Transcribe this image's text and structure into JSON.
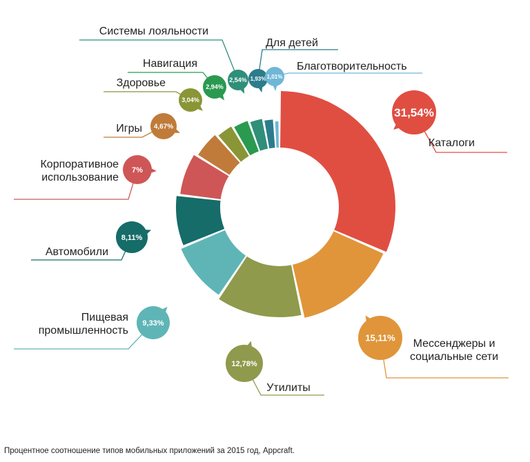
{
  "caption": "Процентное соотношение типов мобильных приложений за 2015 год, Appcraft.",
  "chart_data": {
    "type": "pie",
    "donut": true,
    "slices": [
      {
        "label": "Каталоги",
        "value": 31.54,
        "value_label": "31,54%",
        "color": "#e04e42",
        "label_lines": [
          "Каталоги"
        ]
      },
      {
        "label": "Мессенджеры и социальные сети",
        "value": 15.11,
        "value_label": "15,11%",
        "color": "#e0953a",
        "label_lines": [
          "Мессенджеры и",
          "социальные сети"
        ]
      },
      {
        "label": "Утилиты",
        "value": 12.78,
        "value_label": "12,78%",
        "color": "#8f9a4c",
        "label_lines": [
          "Утилиты"
        ]
      },
      {
        "label": "Пищевая промышленность",
        "value": 9.33,
        "value_label": "9,33%",
        "color": "#5fb5b6",
        "label_lines": [
          "Пищевая",
          "промышленность"
        ]
      },
      {
        "label": "Автомобили",
        "value": 8.11,
        "value_label": "8,11%",
        "color": "#156c69",
        "label_lines": [
          "Автомобили"
        ]
      },
      {
        "label": "Корпоративное использование",
        "value": 7,
        "value_label": "7%",
        "color": "#cf5656",
        "label_lines": [
          "Корпоративное",
          "использование"
        ]
      },
      {
        "label": "Игры",
        "value": 4.67,
        "value_label": "4,67%",
        "color": "#c07b3a",
        "label_lines": [
          "Игры"
        ]
      },
      {
        "label": "Здоровье",
        "value": 3.04,
        "value_label": "3,04%",
        "color": "#8a9536",
        "label_lines": [
          "Здоровье"
        ]
      },
      {
        "label": "Навигация",
        "value": 2.94,
        "value_label": "2,94%",
        "color": "#2a9a50",
        "label_lines": [
          "Навигация"
        ]
      },
      {
        "label": "Системы лояльности",
        "value": 2.54,
        "value_label": "2,54%",
        "color": "#2f8f79",
        "label_lines": [
          "Системы лояльности"
        ]
      },
      {
        "label": "Для детей",
        "value": 1.93,
        "value_label": "1,93%",
        "color": "#2c7c8c",
        "label_lines": [
          "Для детей"
        ]
      },
      {
        "label": "Благотворительность",
        "value": 1.01,
        "value_label": "1,01%",
        "color": "#6fb7d6",
        "label_lines": [
          "Благотворительность"
        ]
      }
    ]
  }
}
